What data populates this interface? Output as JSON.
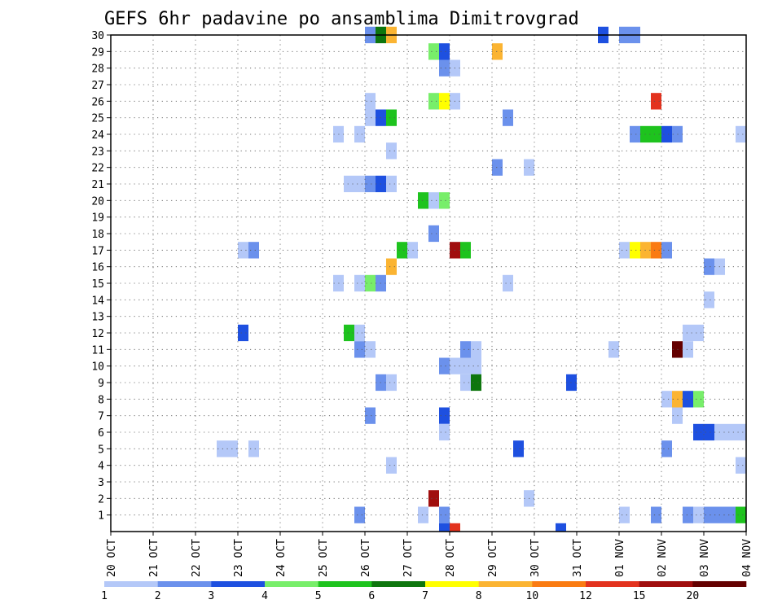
{
  "chart_data": {
    "type": "heatmap",
    "title": "GEFS 6hr padavine po ansamblima Dimitrovgrad",
    "xlabel": "",
    "ylabel": "",
    "x_ticks": [
      "20 OCT",
      "21 OCT",
      "22 OCT",
      "23 OCT",
      "24 OCT",
      "25 OCT",
      "26 OCT",
      "27 OCT",
      "28 OCT",
      "29 OCT",
      "30 OCT",
      "31 OCT",
      "01 NOV",
      "02 NOV",
      "03 NOV",
      "04 NOV"
    ],
    "y_ticks": [
      1,
      2,
      3,
      4,
      5,
      6,
      7,
      8,
      9,
      10,
      11,
      12,
      13,
      14,
      15,
      16,
      17,
      18,
      19,
      20,
      21,
      22,
      23,
      24,
      25,
      26,
      27,
      28,
      29,
      30
    ],
    "x_range_days": [
      0,
      15
    ],
    "y_range": [
      0,
      30
    ],
    "grid": true,
    "legend_placement": "bottom",
    "legend": {
      "labels": [
        "1",
        "2",
        "3",
        "4",
        "5",
        "6",
        "7",
        "8",
        "10",
        "12",
        "15",
        "20"
      ],
      "colors": [
        "#b4c8f8",
        "#6b91ec",
        "#1e50e0",
        "#78ee6a",
        "#1ec31e",
        "#0e760e",
        "#ffff00",
        "#fbb432",
        "#fa7b12",
        "#e3321e",
        "#a00e0e",
        "#640000"
      ]
    },
    "cells_note": "d = forecast day offset from 20 OCT (6-hour steps), m = ensemble member, c = legend colour index",
    "cells": [
      {
        "d": 6.0,
        "m": 30,
        "c": 1
      },
      {
        "d": 6.25,
        "m": 30,
        "c": 5
      },
      {
        "d": 6.5,
        "m": 30,
        "c": 7
      },
      {
        "d": 11.5,
        "m": 30,
        "c": 2
      },
      {
        "d": 12.0,
        "m": 30,
        "c": 1
      },
      {
        "d": 12.25,
        "m": 30,
        "c": 1
      },
      {
        "d": 7.5,
        "m": 29,
        "c": 3
      },
      {
        "d": 7.75,
        "m": 29,
        "c": 2
      },
      {
        "d": 9.0,
        "m": 29,
        "c": 7
      },
      {
        "d": 7.75,
        "m": 28,
        "c": 1
      },
      {
        "d": 8.0,
        "m": 28,
        "c": 0
      },
      {
        "d": 6.0,
        "m": 26,
        "c": 0
      },
      {
        "d": 7.5,
        "m": 26,
        "c": 3
      },
      {
        "d": 7.75,
        "m": 26,
        "c": 6
      },
      {
        "d": 8.0,
        "m": 26,
        "c": 0
      },
      {
        "d": 12.75,
        "m": 26,
        "c": 9
      },
      {
        "d": 6.0,
        "m": 25,
        "c": 0
      },
      {
        "d": 6.25,
        "m": 25,
        "c": 2
      },
      {
        "d": 6.5,
        "m": 25,
        "c": 4
      },
      {
        "d": 9.25,
        "m": 25,
        "c": 1
      },
      {
        "d": 5.25,
        "m": 24,
        "c": 0
      },
      {
        "d": 5.75,
        "m": 24,
        "c": 0
      },
      {
        "d": 12.25,
        "m": 24,
        "c": 1
      },
      {
        "d": 12.5,
        "m": 24,
        "c": 4
      },
      {
        "d": 12.75,
        "m": 24,
        "c": 4
      },
      {
        "d": 13.0,
        "m": 24,
        "c": 2
      },
      {
        "d": 13.25,
        "m": 24,
        "c": 1
      },
      {
        "d": 14.75,
        "m": 24,
        "c": 0
      },
      {
        "d": 6.5,
        "m": 23,
        "c": 0
      },
      {
        "d": 9.0,
        "m": 22,
        "c": 1
      },
      {
        "d": 9.75,
        "m": 22,
        "c": 0
      },
      {
        "d": 5.5,
        "m": 21,
        "c": 0
      },
      {
        "d": 5.75,
        "m": 21,
        "c": 0
      },
      {
        "d": 6.0,
        "m": 21,
        "c": 1
      },
      {
        "d": 6.25,
        "m": 21,
        "c": 2
      },
      {
        "d": 6.5,
        "m": 21,
        "c": 0
      },
      {
        "d": 7.25,
        "m": 20,
        "c": 4
      },
      {
        "d": 7.5,
        "m": 20,
        "c": 0
      },
      {
        "d": 7.75,
        "m": 20,
        "c": 3
      },
      {
        "d": 7.5,
        "m": 18,
        "c": 1
      },
      {
        "d": 3.0,
        "m": 17,
        "c": 0
      },
      {
        "d": 3.25,
        "m": 17,
        "c": 1
      },
      {
        "d": 6.75,
        "m": 17,
        "c": 4
      },
      {
        "d": 7.0,
        "m": 17,
        "c": 0
      },
      {
        "d": 8.0,
        "m": 17,
        "c": 10
      },
      {
        "d": 8.25,
        "m": 17,
        "c": 4
      },
      {
        "d": 12.0,
        "m": 17,
        "c": 0
      },
      {
        "d": 12.25,
        "m": 17,
        "c": 6
      },
      {
        "d": 12.5,
        "m": 17,
        "c": 7
      },
      {
        "d": 12.75,
        "m": 17,
        "c": 8
      },
      {
        "d": 13.0,
        "m": 17,
        "c": 1
      },
      {
        "d": 6.5,
        "m": 16,
        "c": 7
      },
      {
        "d": 14.0,
        "m": 16,
        "c": 1
      },
      {
        "d": 14.25,
        "m": 16,
        "c": 0
      },
      {
        "d": 5.25,
        "m": 15,
        "c": 0
      },
      {
        "d": 5.75,
        "m": 15,
        "c": 0
      },
      {
        "d": 6.0,
        "m": 15,
        "c": 3
      },
      {
        "d": 6.25,
        "m": 15,
        "c": 1
      },
      {
        "d": 9.25,
        "m": 15,
        "c": 0
      },
      {
        "d": 14.0,
        "m": 14,
        "c": 0
      },
      {
        "d": 3.0,
        "m": 12,
        "c": 2
      },
      {
        "d": 5.5,
        "m": 12,
        "c": 4
      },
      {
        "d": 5.75,
        "m": 12,
        "c": 0
      },
      {
        "d": 13.5,
        "m": 12,
        "c": 0
      },
      {
        "d": 13.75,
        "m": 12,
        "c": 0
      },
      {
        "d": 5.75,
        "m": 11,
        "c": 1
      },
      {
        "d": 6.0,
        "m": 11,
        "c": 0
      },
      {
        "d": 8.25,
        "m": 11,
        "c": 1
      },
      {
        "d": 8.5,
        "m": 11,
        "c": 0
      },
      {
        "d": 11.75,
        "m": 11,
        "c": 0
      },
      {
        "d": 13.25,
        "m": 11,
        "c": 11
      },
      {
        "d": 13.5,
        "m": 11,
        "c": 0
      },
      {
        "d": 7.75,
        "m": 10,
        "c": 1
      },
      {
        "d": 8.0,
        "m": 10,
        "c": 0
      },
      {
        "d": 8.25,
        "m": 10,
        "c": 0
      },
      {
        "d": 8.5,
        "m": 10,
        "c": 0
      },
      {
        "d": 6.25,
        "m": 9,
        "c": 1
      },
      {
        "d": 6.5,
        "m": 9,
        "c": 0
      },
      {
        "d": 8.25,
        "m": 9,
        "c": 0
      },
      {
        "d": 8.5,
        "m": 9,
        "c": 5
      },
      {
        "d": 10.75,
        "m": 9,
        "c": 2
      },
      {
        "d": 13.0,
        "m": 8,
        "c": 0
      },
      {
        "d": 13.25,
        "m": 8,
        "c": 7
      },
      {
        "d": 13.5,
        "m": 8,
        "c": 2
      },
      {
        "d": 13.75,
        "m": 8,
        "c": 3
      },
      {
        "d": 6.0,
        "m": 7,
        "c": 1
      },
      {
        "d": 7.75,
        "m": 7,
        "c": 2
      },
      {
        "d": 13.25,
        "m": 7,
        "c": 0
      },
      {
        "d": 7.75,
        "m": 6,
        "c": 0
      },
      {
        "d": 13.75,
        "m": 6,
        "c": 2
      },
      {
        "d": 14.0,
        "m": 6,
        "c": 2
      },
      {
        "d": 14.25,
        "m": 6,
        "c": 0
      },
      {
        "d": 14.5,
        "m": 6,
        "c": 0
      },
      {
        "d": 14.75,
        "m": 6,
        "c": 0
      },
      {
        "d": 2.5,
        "m": 5,
        "c": 0
      },
      {
        "d": 2.75,
        "m": 5,
        "c": 0
      },
      {
        "d": 3.25,
        "m": 5,
        "c": 0
      },
      {
        "d": 9.5,
        "m": 5,
        "c": 2
      },
      {
        "d": 13.0,
        "m": 5,
        "c": 1
      },
      {
        "d": 6.5,
        "m": 4,
        "c": 0
      },
      {
        "d": 14.75,
        "m": 4,
        "c": 0
      },
      {
        "d": 7.5,
        "m": 2,
        "c": 10
      },
      {
        "d": 9.75,
        "m": 2,
        "c": 0
      },
      {
        "d": 5.75,
        "m": 1,
        "c": 1
      },
      {
        "d": 7.25,
        "m": 1,
        "c": 0
      },
      {
        "d": 7.75,
        "m": 1,
        "c": 1
      },
      {
        "d": 12.0,
        "m": 1,
        "c": 0
      },
      {
        "d": 12.75,
        "m": 1,
        "c": 1
      },
      {
        "d": 13.5,
        "m": 1,
        "c": 1
      },
      {
        "d": 13.75,
        "m": 1,
        "c": 0
      },
      {
        "d": 14.0,
        "m": 1,
        "c": 1
      },
      {
        "d": 14.25,
        "m": 1,
        "c": 1
      },
      {
        "d": 14.5,
        "m": 1,
        "c": 1
      },
      {
        "d": 14.75,
        "m": 1,
        "c": 4
      },
      {
        "d": 7.75,
        "m": 0,
        "c": 2
      },
      {
        "d": 8.0,
        "m": 0,
        "c": 9
      },
      {
        "d": 10.5,
        "m": 0,
        "c": 2
      }
    ]
  }
}
